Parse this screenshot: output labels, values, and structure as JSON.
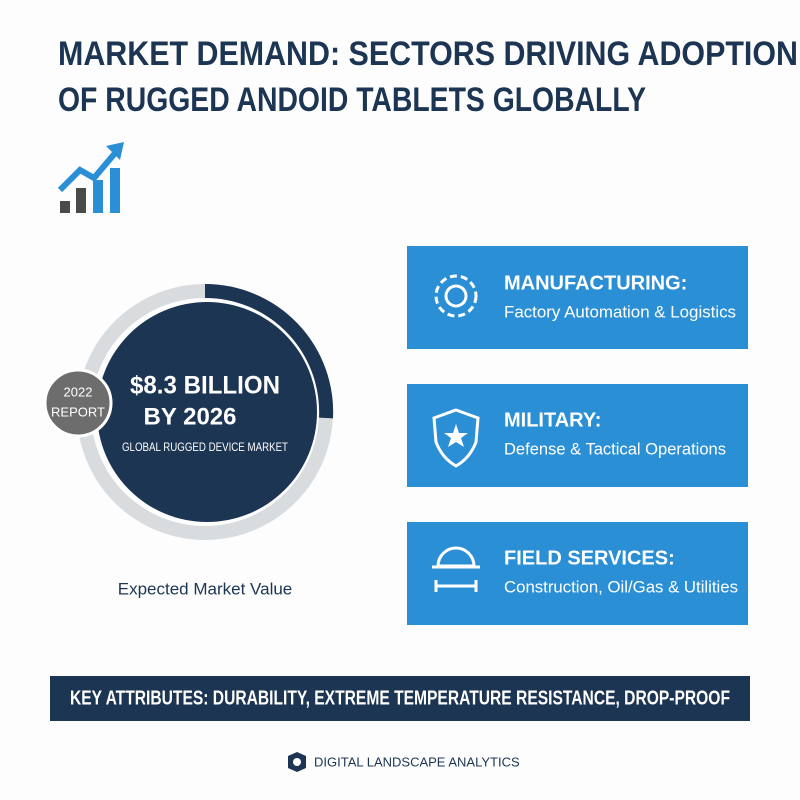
{
  "header": {
    "title_lines": [
      "MARKET DEMAND: SECTORS DRIVING ADOPTION",
      "OF RUGGED ANDOID TABLETS GLOBALLY"
    ]
  },
  "badge": {
    "lines": [
      "2022",
      "REPORT"
    ]
  },
  "highlight": {
    "value": "$8.3 BILLION",
    "year": "BY 2026",
    "subject": "GLOBAL RUGGED DEVICE MARKET",
    "caption": "Expected Market Value"
  },
  "sectors": [
    {
      "title": "MANUFACTURING:",
      "description": "Factory Automation & Logistics"
    },
    {
      "title": "MILITARY:",
      "description": "Defense & Tactical Operations"
    },
    {
      "title": "FIELD SERVICES:",
      "description": "Construction, Oil/Gas & Utilities"
    }
  ],
  "banner": "KEY ATTRIBUTES: DURABILITY, EXTREME TEMPERATURE RESISTANCE, DROP-PROOF",
  "footer": "DIGITAL LANDSCAPE ANALYTICS"
}
